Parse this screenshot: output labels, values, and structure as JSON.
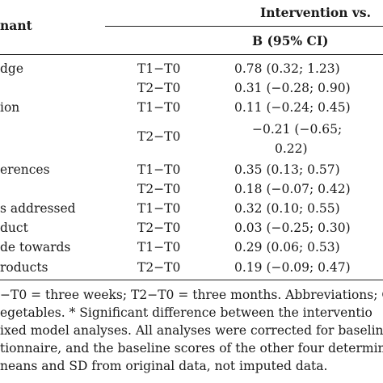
{
  "header": {
    "col1": "nant",
    "group": "Intervention vs.",
    "sub": "B (95% CI)"
  },
  "rows": [
    {
      "det": "dge",
      "period": "T1−T0",
      "val": "0.78 (0.32; 1.23)",
      "val2": ""
    },
    {
      "det": "",
      "period": "T2−T0",
      "val": "0.31 (−0.28; 0.90)",
      "val2": ""
    },
    {
      "det": "ion",
      "period": "T1−T0",
      "val": "0.11 (−0.24; 0.45)",
      "val2": ""
    },
    {
      "det": "",
      "period": "T2−T0",
      "val": "−0.21 (−0.65;",
      "val2": "0.22)"
    },
    {
      "det": "erences",
      "period": "T1−T0",
      "val": "0.35 (0.13; 0.57)",
      "val2": ""
    },
    {
      "det": "",
      "period": "T2−T0",
      "val": "0.18 (−0.07; 0.42)",
      "val2": ""
    },
    {
      "det": "s addressed",
      "period": "T1−T0",
      "val": "0.32 (0.10; 0.55)",
      "val2": ""
    },
    {
      "det": "duct",
      "period": "T2−T0",
      "val": "0.03 (−0.25; 0.30)",
      "val2": ""
    },
    {
      "det": "de towards",
      "period": "T1−T0",
      "val": "0.29 (0.06; 0.53)",
      "val2": ""
    },
    {
      "det": "roducts",
      "period": "T2−T0",
      "val": "0.19 (−0.09; 0.47)",
      "val2": ""
    }
  ],
  "footnotes": [
    "−T0 = three weeks; T2−T0 = three months. Abbreviations; C",
    "egetables. * Significant difference between the interventio",
    "ixed model analyses. All analyses were corrected for baseline",
    "tionnaire, and the baseline scores of the other four determin",
    "neans and SD from original data, not imputed data."
  ]
}
